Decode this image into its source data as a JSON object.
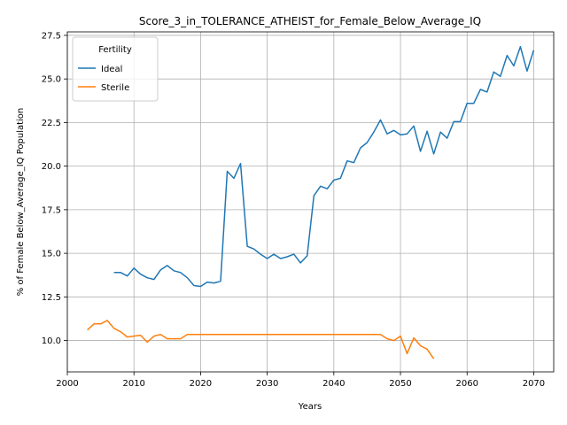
{
  "chart_data": {
    "type": "line",
    "title": "Score_3_in_TOLERANCE_ATHEIST_for_Female_Below_Average_IQ",
    "xlabel": "Years",
    "ylabel": "% of Female Below_Average_IQ Population",
    "xlim": [
      2000,
      2073
    ],
    "ylim": [
      8.2,
      27.7
    ],
    "x_ticks": [
      2000,
      2010,
      2020,
      2030,
      2040,
      2050,
      2060,
      2070
    ],
    "y_ticks": [
      10.0,
      12.5,
      15.0,
      17.5,
      20.0,
      22.5,
      25.0,
      27.5
    ],
    "x_tick_labels": [
      "2000",
      "2010",
      "2020",
      "2030",
      "2040",
      "2050",
      "2060",
      "2070"
    ],
    "y_tick_labels": [
      "10.0",
      "12.5",
      "15.0",
      "17.5",
      "20.0",
      "22.5",
      "25.0",
      "27.5"
    ],
    "grid": true,
    "legend": {
      "title": "Fertility",
      "placement": "top-left"
    },
    "series": [
      {
        "name": "Ideal",
        "color": "#1f77b4",
        "x": [
          2007,
          2008,
          2009,
          2010,
          2011,
          2012,
          2013,
          2014,
          2015,
          2016,
          2017,
          2018,
          2019,
          2020,
          2021,
          2022,
          2023,
          2024,
          2025,
          2026,
          2027,
          2028,
          2029,
          2030,
          2031,
          2032,
          2033,
          2034,
          2035,
          2036,
          2037,
          2038,
          2039,
          2040,
          2041,
          2042,
          2043,
          2044,
          2045,
          2046,
          2047,
          2048,
          2049,
          2050,
          2051,
          2052,
          2053,
          2054,
          2055,
          2056,
          2057,
          2058,
          2059,
          2060,
          2061,
          2062,
          2063,
          2064,
          2065,
          2066,
          2067,
          2068,
          2069,
          2070
        ],
        "values": [
          13.9,
          13.9,
          13.7,
          14.15,
          13.8,
          13.6,
          13.5,
          14.05,
          14.3,
          14.0,
          13.9,
          13.6,
          13.15,
          13.1,
          13.35,
          13.3,
          13.4,
          19.7,
          19.3,
          20.15,
          15.4,
          15.25,
          14.95,
          14.7,
          14.95,
          14.7,
          14.8,
          14.95,
          14.45,
          14.85,
          18.3,
          18.85,
          18.7,
          19.2,
          19.3,
          20.3,
          20.2,
          21.05,
          21.35,
          21.95,
          22.65,
          21.85,
          22.05,
          21.8,
          21.85,
          22.3,
          20.85,
          22.0,
          20.7,
          21.95,
          21.6,
          22.55,
          22.55,
          23.6,
          23.6,
          24.4,
          24.25,
          25.4,
          25.15,
          26.35,
          25.75,
          26.85,
          25.45,
          26.65
        ]
      },
      {
        "name": "Sterile",
        "color": "#ff7f0e",
        "x": [
          2003,
          2004,
          2005,
          2006,
          2007,
          2008,
          2009,
          2010,
          2011,
          2012,
          2013,
          2014,
          2015,
          2016,
          2017,
          2018,
          2019,
          2020,
          2021,
          2022,
          2023,
          2024,
          2025,
          2026,
          2027,
          2028,
          2029,
          2030,
          2031,
          2032,
          2033,
          2034,
          2035,
          2036,
          2037,
          2038,
          2039,
          2040,
          2041,
          2042,
          2043,
          2044,
          2045,
          2046,
          2047,
          2048,
          2049,
          2050,
          2051,
          2052,
          2053,
          2054,
          2055
        ],
        "values": [
          10.6,
          10.95,
          10.95,
          11.15,
          10.7,
          10.5,
          10.2,
          10.25,
          10.3,
          9.9,
          10.25,
          10.35,
          10.1,
          10.1,
          10.1,
          10.35,
          10.35,
          10.35,
          10.35,
          10.35,
          10.35,
          10.35,
          10.35,
          10.35,
          10.35,
          10.35,
          10.35,
          10.35,
          10.35,
          10.35,
          10.35,
          10.35,
          10.35,
          10.35,
          10.35,
          10.35,
          10.35,
          10.35,
          10.35,
          10.35,
          10.35,
          10.35,
          10.35,
          10.35,
          10.35,
          10.1,
          10.0,
          10.25,
          9.25,
          10.15,
          9.7,
          9.5,
          8.95
        ]
      }
    ]
  }
}
